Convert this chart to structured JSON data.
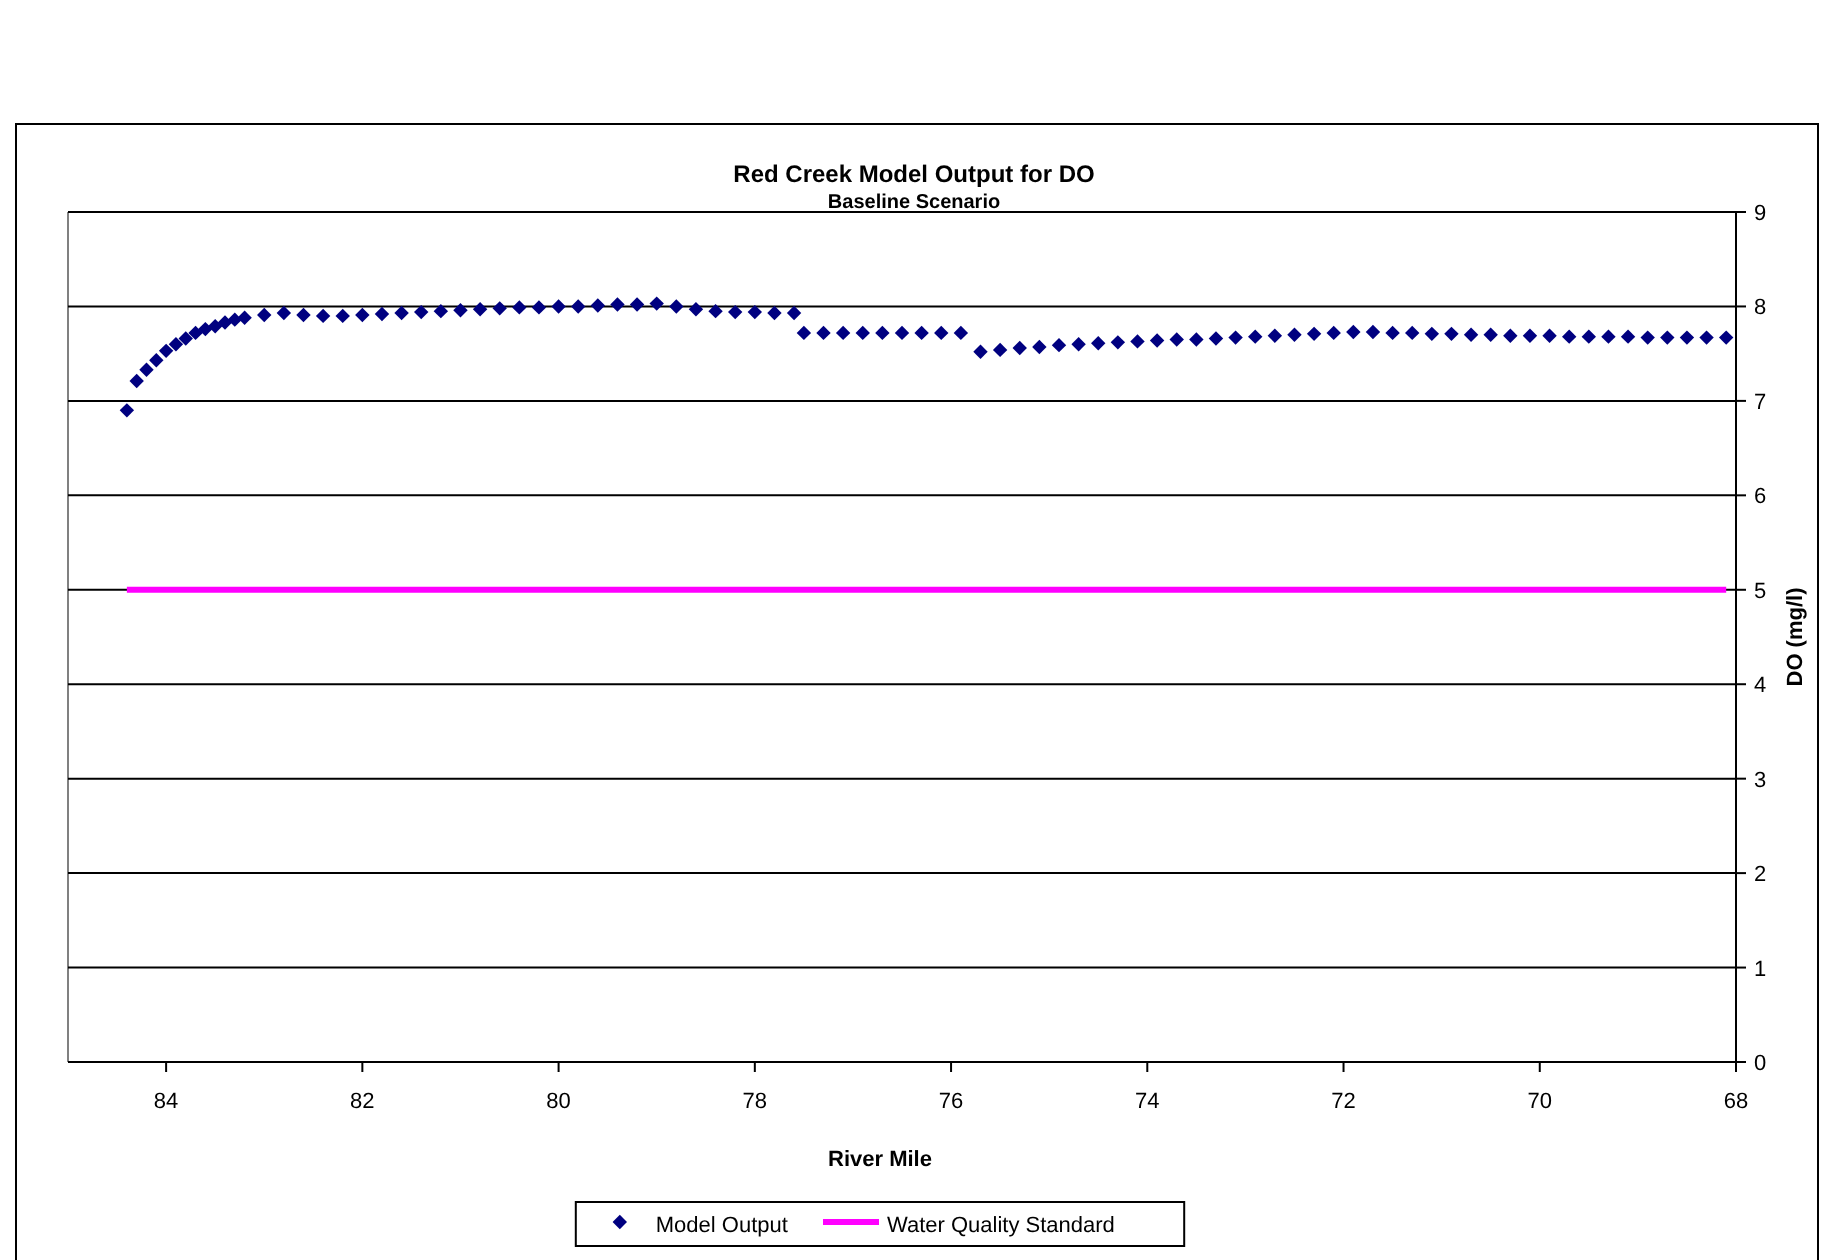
{
  "chart_data": {
    "type": "scatter",
    "title": "Red Creek Model Output for DO",
    "subtitle": "Baseline Scenario",
    "xlabel": "River Mile",
    "ylabel": "DO (mg/l)",
    "xlim": [
      85,
      68
    ],
    "xticks": [
      84,
      82,
      80,
      78,
      76,
      74,
      72,
      70,
      68
    ],
    "ylim": [
      0,
      9
    ],
    "yticks": [
      0,
      1,
      2,
      3,
      4,
      5,
      6,
      7,
      8,
      9
    ],
    "grid": "y",
    "legend": "bottom",
    "series": [
      {
        "name": "Model Output",
        "marker": "diamond",
        "color": "#000080",
        "x": [
          84.4,
          84.3,
          84.2,
          84.1,
          84.0,
          83.9,
          83.8,
          83.7,
          83.6,
          83.5,
          83.4,
          83.3,
          83.2,
          83.0,
          82.8,
          82.6,
          82.4,
          82.2,
          82.0,
          81.8,
          81.6,
          81.4,
          81.2,
          81.0,
          80.8,
          80.6,
          80.4,
          80.2,
          80.0,
          79.8,
          79.6,
          79.4,
          79.2,
          79.0,
          78.8,
          78.6,
          78.4,
          78.2,
          78.0,
          77.8,
          77.6,
          77.5,
          77.3,
          77.1,
          76.9,
          76.7,
          76.5,
          76.3,
          76.1,
          75.9,
          75.7,
          75.5,
          75.3,
          75.1,
          74.9,
          74.7,
          74.5,
          74.3,
          74.1,
          73.9,
          73.7,
          73.5,
          73.3,
          73.1,
          72.9,
          72.7,
          72.5,
          72.3,
          72.1,
          71.9,
          71.7,
          71.5,
          71.3,
          71.1,
          70.9,
          70.7,
          70.5,
          70.3,
          70.1,
          69.9,
          69.7,
          69.5,
          69.3,
          69.1,
          68.9,
          68.7,
          68.5,
          68.3,
          68.1
        ],
        "values": [
          6.9,
          7.21,
          7.33,
          7.43,
          7.53,
          7.6,
          7.66,
          7.72,
          7.76,
          7.79,
          7.83,
          7.86,
          7.88,
          7.91,
          7.93,
          7.91,
          7.9,
          7.9,
          7.91,
          7.92,
          7.93,
          7.94,
          7.95,
          7.96,
          7.97,
          7.98,
          7.99,
          7.99,
          8.0,
          8.0,
          8.01,
          8.02,
          8.02,
          8.03,
          8.0,
          7.97,
          7.95,
          7.94,
          7.94,
          7.93,
          7.93,
          7.72,
          7.72,
          7.72,
          7.72,
          7.72,
          7.72,
          7.72,
          7.72,
          7.72,
          7.52,
          7.54,
          7.56,
          7.57,
          7.59,
          7.6,
          7.61,
          7.62,
          7.63,
          7.64,
          7.65,
          7.65,
          7.66,
          7.67,
          7.68,
          7.69,
          7.7,
          7.71,
          7.72,
          7.73,
          7.73,
          7.72,
          7.72,
          7.71,
          7.71,
          7.7,
          7.7,
          7.69,
          7.69,
          7.69,
          7.68,
          7.68,
          7.68,
          7.68,
          7.67,
          7.67,
          7.67,
          7.67,
          7.67
        ]
      },
      {
        "name": "Water Quality Standard",
        "type": "line",
        "marker": "none",
        "line_style": "solid",
        "color": "#ff00ff",
        "x": [
          84.4,
          68.1
        ],
        "values": [
          5,
          5
        ]
      }
    ]
  }
}
